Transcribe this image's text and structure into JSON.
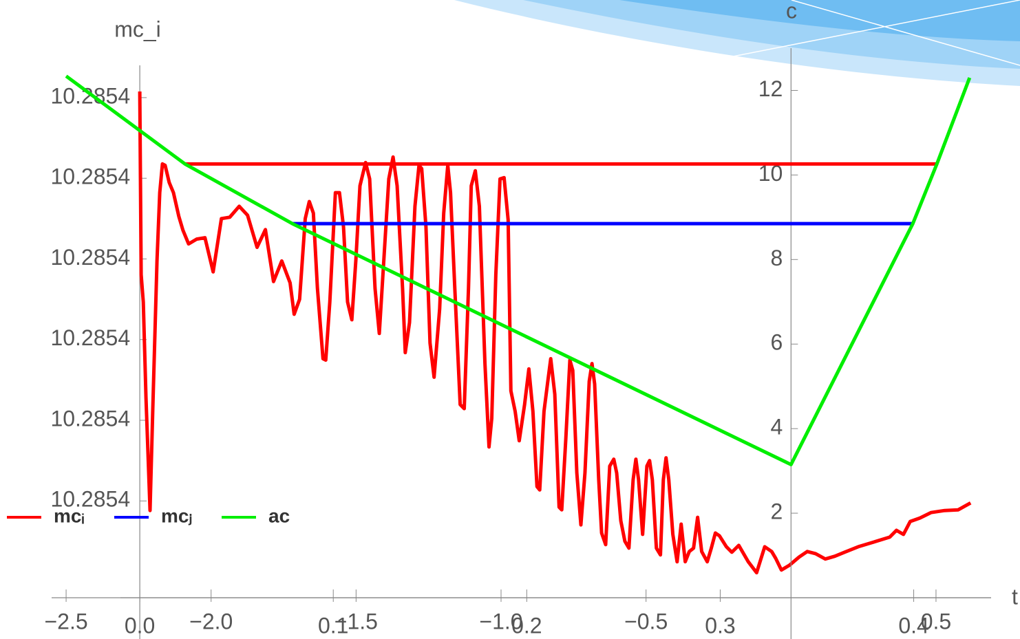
{
  "chart_data": [
    {
      "type": "line",
      "y_label": "mc_i",
      "xlim": [
        -0.01,
        0.44
      ],
      "ylim": [
        10.285348,
        10.285414
      ],
      "xticks": [
        {
          "value": 0,
          "label": "0.0"
        },
        0.1,
        0.2,
        0.3,
        0.4
      ],
      "yticks": [
        {
          "value": 10.28536,
          "label": "10.2854"
        },
        {
          "value": 10.28537,
          "label": "10.2854"
        },
        {
          "value": 10.28538,
          "label": "10.2854"
        },
        {
          "value": 10.28539,
          "label": "10.2854"
        },
        {
          "value": 10.2854,
          "label": "10.2854"
        },
        {
          "value": 10.28541,
          "label": "10.2854"
        }
      ],
      "series": [
        {
          "color": "#ff0000",
          "x": [
            0,
            0.0007,
            0.0018,
            0.0032,
            0.0053,
            0.0067,
            0.0089,
            0.0103,
            0.0117,
            0.0131,
            0.0152,
            0.0174,
            0.0202,
            0.0223,
            0.0252,
            0.0294,
            0.0337,
            0.0379,
            0.0422,
            0.0465,
            0.0514,
            0.0557,
            0.0606,
            0.0649,
            0.0691,
            0.0734,
            0.0777,
            0.0798,
            0.0826,
            0.0855,
            0.0876,
            0.0897,
            0.0918,
            0.0947,
            0.0961,
            0.0982,
            0.1011,
            0.1032,
            0.1053,
            0.1074,
            0.1096,
            0.1117,
            0.1138,
            0.1167,
            0.1188,
            0.1216,
            0.1238,
            0.1259,
            0.1287,
            0.1309,
            0.133,
            0.1358,
            0.1372,
            0.1394,
            0.1422,
            0.1443,
            0.1457,
            0.1479,
            0.15,
            0.1521,
            0.155,
            0.1571,
            0.1592,
            0.1606,
            0.1628,
            0.1656,
            0.1677,
            0.1699,
            0.1713,
            0.1734,
            0.1755,
            0.1784,
            0.1805,
            0.1819,
            0.184,
            0.1862,
            0.1883,
            0.1904,
            0.1918,
            0.194,
            0.1961,
            0.1989,
            0.2011,
            0.2032,
            0.2053,
            0.2067,
            0.2089,
            0.211,
            0.2124,
            0.2145,
            0.2167,
            0.2181,
            0.2202,
            0.2223,
            0.2238,
            0.2259,
            0.228,
            0.2301,
            0.2323,
            0.2337,
            0.2351,
            0.2372,
            0.2387,
            0.2408,
            0.2429,
            0.245,
            0.2465,
            0.2486,
            0.2507,
            0.2528,
            0.255,
            0.2564,
            0.2578,
            0.2599,
            0.2621,
            0.2635,
            0.2649,
            0.267,
            0.2691,
            0.2706,
            0.272,
            0.2734,
            0.2755,
            0.2777,
            0.2798,
            0.2819,
            0.284,
            0.2862,
            0.2883,
            0.2904,
            0.2933,
            0.2954,
            0.2975,
            0.2996,
            0.3032,
            0.306,
            0.3096,
            0.3145,
            0.3188,
            0.323,
            0.3266,
            0.3287,
            0.3316,
            0.3358,
            0.3408,
            0.345,
            0.3493,
            0.3543,
            0.3592,
            0.3642,
            0.3713,
            0.3784,
            0.3876,
            0.3911,
            0.3947,
            0.3982,
            0.4032,
            0.4089,
            0.416,
            0.423,
            0.4294
          ],
          "values": [
            10.28541076,
            10.28538805,
            10.28538466,
            10.2853728,
            10.28535881,
            10.2853711,
            10.28538975,
            10.28539822,
            10.28540178,
            10.28540161,
            10.28539949,
            10.28539822,
            10.28539525,
            10.28539356,
            10.28539186,
            10.28539246,
            10.28539263,
            10.28538839,
            10.285395,
            10.28539517,
            10.28539653,
            10.28539542,
            10.28539144,
            10.28539364,
            10.2853872,
            10.28538975,
            10.28538703,
            10.28538314,
            10.285385,
            10.285395,
            10.28539712,
            10.28539568,
            10.28538636,
            10.28537763,
            10.28537746,
            10.28538466,
            10.28539822,
            10.28539822,
            10.28539398,
            10.28538466,
            10.28538246,
            10.28538992,
            10.28539907,
            10.28540195,
            10.28539992,
            10.28538636,
            10.28538076,
            10.2853889,
            10.28539992,
            10.28540263,
            10.28539907,
            10.28538636,
            10.28537839,
            10.28538212,
            10.28539653,
            10.28540161,
            10.28540119,
            10.28539398,
            10.28537958,
            10.28537534,
            10.28538381,
            10.28539568,
            10.28540161,
            10.28539822,
            10.28538636,
            10.28537195,
            10.28537144,
            10.28538636,
            10.28539907,
            10.28540093,
            10.28539653,
            10.28537703,
            10.28536669,
            10.28537025,
            10.28538805,
            10.28539992,
            10.28540008,
            10.28539483,
            10.28537364,
            10.2853711,
            10.28536746,
            10.28537195,
            10.28537636,
            10.2853711,
            10.28536178,
            10.28536136,
            10.2853711,
            10.28537508,
            10.28537763,
            10.28537322,
            10.28535924,
            10.2853589,
            10.28536771,
            10.28537746,
            10.28537619,
            10.28536347,
            10.28535703,
            10.28536347,
            10.28537483,
            10.28537703,
            10.28537449,
            10.28536263,
            10.28535602,
            10.28535458,
            10.28536432,
            10.28536517,
            10.28536347,
            10.28535754,
            10.285355,
            10.28535415,
            10.28536263,
            10.28536517,
            10.28536263,
            10.28535585,
            10.28536432,
            10.285365,
            10.28536263,
            10.28535415,
            10.28535331,
            10.28536263,
            10.28536534,
            10.28536263,
            10.28535585,
            10.28535246,
            10.28535712,
            10.28535246,
            10.28535373,
            10.28535415,
            10.28535797,
            10.28535373,
            10.28535246,
            10.28535415,
            10.28535602,
            10.28535568,
            10.28535432,
            10.28535364,
            10.28535449,
            10.28535246,
            10.2853511,
            10.28535432,
            10.28535373,
            10.28535288,
            10.28535144,
            10.28535203,
            10.28535305,
            10.28535373,
            10.28535347,
            10.2853528,
            10.28535314,
            10.28535364,
            10.28535432,
            10.28535483,
            10.28535551,
            10.28535636,
            10.28535585,
            10.28535746,
            10.28535788,
            10.28535856,
            10.28535881,
            10.2853589,
            10.28535975
          ]
        }
      ]
    },
    {
      "type": "line",
      "x_label": "t",
      "y_label": "c",
      "legend": "lower left",
      "xlim": [
        -2.55,
        0.69
      ],
      "ylim": [
        0,
        13
      ],
      "xticks": [
        {
          "value": -2.5,
          "label": "−2.5"
        },
        {
          "value": -2,
          "label": "−2.0"
        },
        {
          "value": -1.5,
          "label": "−1.5"
        },
        {
          "value": -1,
          "label": "−1.0"
        },
        {
          "value": -0.5,
          "label": "−0.5"
        },
        0.5
      ],
      "yticks": [
        2,
        4,
        6,
        8,
        10,
        12
      ],
      "series": [
        {
          "name": "mcᵢ",
          "color": "#ff0000",
          "x": [
            -2.09,
            0.503
          ],
          "values": [
            10.26,
            10.26
          ]
        },
        {
          "name": "mcⱼ",
          "color": "#0000ff",
          "x": [
            -1.72,
            0.42
          ],
          "values": [
            8.85,
            8.85
          ]
        },
        {
          "name": "ac",
          "color": "#00ee00",
          "x": [
            -2.5,
            -2.09,
            -1.72,
            0,
            0.42,
            0.503,
            0.616
          ],
          "values": [
            12.34,
            10.26,
            8.85,
            3.15,
            8.85,
            10.26,
            12.3
          ]
        }
      ]
    }
  ]
}
